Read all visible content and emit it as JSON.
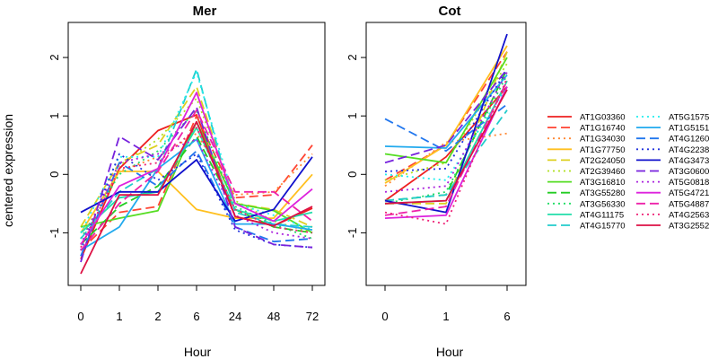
{
  "chart_data": [
    {
      "type": "line",
      "title": "Mer",
      "xlabel": "Hour",
      "ylabel": "centered expression",
      "categories": [
        "0",
        "1",
        "2",
        "6",
        "24",
        "48",
        "72"
      ],
      "ylim": [
        -1.9,
        2.6
      ],
      "yticks": [
        -1,
        0,
        1,
        2
      ],
      "series": [
        {
          "name": "AT1G03360",
          "color": "#EE2020",
          "dash": "solid",
          "values": [
            -1.45,
            0.1,
            0.75,
            1.02,
            -0.72,
            -0.88,
            -0.58
          ]
        },
        {
          "name": "AT1G16740",
          "color": "#FF4433",
          "dash": "longdash",
          "values": [
            -1.3,
            -0.65,
            -0.55,
            1.0,
            -0.4,
            -0.35,
            0.5
          ]
        },
        {
          "name": "AT1G34030",
          "color": "#FF8833",
          "dash": "dotted",
          "values": [
            -1.1,
            0.05,
            0.3,
            0.7,
            -0.35,
            -0.3,
            0.35
          ]
        },
        {
          "name": "AT1G77750",
          "color": "#FFC020",
          "dash": "solid",
          "values": [
            -1.0,
            0.05,
            0.05,
            -0.6,
            -0.75,
            -0.75,
            0.0
          ]
        },
        {
          "name": "AT2G24050",
          "color": "#DDD020",
          "dash": "longdash",
          "values": [
            -0.9,
            0.2,
            0.5,
            1.5,
            -0.5,
            -0.6,
            -0.9
          ]
        },
        {
          "name": "AT2G39460",
          "color": "#B0E020",
          "dash": "dotted",
          "values": [
            -1.2,
            0.15,
            0.6,
            1.3,
            -0.45,
            -0.8,
            -1.0
          ]
        },
        {
          "name": "AT3G16810",
          "color": "#55DD22",
          "dash": "solid",
          "values": [
            -0.9,
            -0.75,
            -0.62,
            0.9,
            -0.5,
            -0.62,
            -1.0
          ]
        },
        {
          "name": "AT3G55280",
          "color": "#22CC22",
          "dash": "longdash",
          "values": [
            -1.2,
            -0.55,
            -0.2,
            0.65,
            -0.6,
            -0.9,
            -1.0
          ]
        },
        {
          "name": "AT3G56330",
          "color": "#22DD66",
          "dash": "dotted",
          "values": [
            -1.1,
            0.0,
            0.4,
            1.1,
            -0.55,
            -0.85,
            -1.1
          ]
        },
        {
          "name": "AT4G11175",
          "color": "#22DDAA",
          "dash": "solid",
          "values": [
            -1.0,
            -0.4,
            -0.3,
            0.8,
            -0.6,
            -0.8,
            -0.65
          ]
        },
        {
          "name": "AT4G15770",
          "color": "#22CCCC",
          "dash": "longdash",
          "values": [
            -1.1,
            -0.3,
            0.1,
            1.8,
            -0.65,
            -0.85,
            -0.9
          ]
        },
        {
          "name": "AT5G1575",
          "color": "#22EEEE",
          "dash": "dotted",
          "values": [
            -1.0,
            0.3,
            0.3,
            1.75,
            -0.5,
            -0.7,
            -0.95
          ]
        },
        {
          "name": "AT1G5151",
          "color": "#22AAEE",
          "dash": "solid",
          "values": [
            -1.3,
            -0.9,
            0.1,
            0.6,
            -0.85,
            -0.85,
            -0.95
          ]
        },
        {
          "name": "AT4G1260",
          "color": "#2277EE",
          "dash": "longdash",
          "values": [
            -1.4,
            0.2,
            -0.2,
            0.4,
            -0.9,
            -1.15,
            -1.1
          ]
        },
        {
          "name": "AT4G2238",
          "color": "#2233DD",
          "dash": "dotted",
          "values": [
            -1.3,
            0.35,
            -0.1,
            0.35,
            -0.95,
            -1.2,
            -1.25
          ]
        },
        {
          "name": "AT4G3473",
          "color": "#1111CC",
          "dash": "solid",
          "values": [
            -0.65,
            -0.3,
            -0.3,
            0.25,
            -0.8,
            -0.6,
            0.3
          ]
        },
        {
          "name": "AT3G0600",
          "color": "#7722DD",
          "dash": "longdash",
          "values": [
            -1.5,
            0.65,
            0.25,
            1.15,
            -0.9,
            -1.2,
            -1.25
          ]
        },
        {
          "name": "AT5G0818",
          "color": "#AA22DD",
          "dash": "dotted",
          "values": [
            -1.2,
            0.2,
            0.35,
            0.6,
            -0.7,
            -1.0,
            -1.1
          ]
        },
        {
          "name": "AT5G4721",
          "color": "#DD22DD",
          "dash": "solid",
          "values": [
            -1.2,
            -0.2,
            0.1,
            1.4,
            -0.5,
            -0.8,
            -0.25
          ]
        },
        {
          "name": "AT5G4887",
          "color": "#EE22AA",
          "dash": "longdash",
          "values": [
            -1.3,
            -0.5,
            0.05,
            1.1,
            -0.3,
            -0.3,
            -0.8
          ]
        },
        {
          "name": "AT4G2563",
          "color": "#EE2277",
          "dash": "dotted",
          "values": [
            -1.25,
            0.1,
            0.2,
            0.8,
            -0.6,
            -0.9,
            -1.0
          ]
        },
        {
          "name": "AT3G2552",
          "color": "#DD1144",
          "dash": "solid",
          "values": [
            -1.7,
            -0.35,
            -0.35,
            0.9,
            -0.72,
            -0.88,
            -0.55
          ]
        }
      ]
    },
    {
      "type": "line",
      "title": "Cot",
      "xlabel": "Hour",
      "categories": [
        "0",
        "1",
        "6"
      ],
      "ylim": [
        -1.9,
        2.6
      ],
      "yticks": [
        -1,
        0,
        1,
        2
      ],
      "series": [
        {
          "name": "AT1G03360",
          "color": "#EE2020",
          "values": [
            -0.45,
            0.3,
            1.5
          ]
        },
        {
          "name": "AT1G16740",
          "color": "#FF4433",
          "values": [
            -0.1,
            0.5,
            2.1
          ]
        },
        {
          "name": "AT1G34030",
          "color": "#FF8833",
          "values": [
            -0.2,
            0.55,
            0.7
          ]
        },
        {
          "name": "AT1G77750",
          "color": "#FFC020",
          "values": [
            -0.15,
            0.5,
            2.2
          ]
        },
        {
          "name": "AT2G24050",
          "color": "#DDD020",
          "values": [
            -0.5,
            -0.5,
            2.1
          ]
        },
        {
          "name": "AT2G39460",
          "color": "#B0E020",
          "values": [
            -0.1,
            0.2,
            1.9
          ]
        },
        {
          "name": "AT3G16810",
          "color": "#55DD22",
          "values": [
            0.35,
            0.2,
            2.0
          ]
        },
        {
          "name": "AT3G55280",
          "color": "#22CC22",
          "values": [
            -0.45,
            -0.35,
            1.8
          ]
        },
        {
          "name": "AT3G56330",
          "color": "#22DD66",
          "values": [
            -0.5,
            -0.3,
            1.7
          ]
        },
        {
          "name": "AT4G11175",
          "color": "#22DDAA",
          "values": [
            -0.5,
            -0.45,
            1.6
          ]
        },
        {
          "name": "AT4G15770",
          "color": "#22CCCC",
          "values": [
            -0.45,
            -0.35,
            1.1
          ]
        },
        {
          "name": "AT5G1575",
          "color": "#22EEEE",
          "values": [
            0.0,
            -0.1,
            1.5
          ]
        },
        {
          "name": "AT1G5151",
          "color": "#22AAEE",
          "values": [
            0.48,
            0.45,
            1.7
          ]
        },
        {
          "name": "AT4G1260",
          "color": "#2277EE",
          "values": [
            0.95,
            0.4,
            1.2
          ]
        },
        {
          "name": "AT4G2238",
          "color": "#2233DD",
          "values": [
            0.05,
            0.1,
            1.8
          ]
        },
        {
          "name": "AT4G3473",
          "color": "#1111CC",
          "values": [
            -0.45,
            -0.65,
            2.4
          ]
        },
        {
          "name": "AT3G0600",
          "color": "#7722DD",
          "values": [
            0.2,
            0.5,
            1.8
          ]
        },
        {
          "name": "AT5G0818",
          "color": "#AA22DD",
          "values": [
            -0.3,
            -0.2,
            1.75
          ]
        },
        {
          "name": "AT5G4721",
          "color": "#DD22DD",
          "values": [
            -0.75,
            -0.7,
            1.5
          ]
        },
        {
          "name": "AT5G4887",
          "color": "#EE22AA",
          "values": [
            -0.7,
            -0.55,
            1.6
          ]
        },
        {
          "name": "AT4G2563",
          "color": "#EE2277",
          "values": [
            -0.65,
            -0.85,
            1.65
          ]
        },
        {
          "name": "AT3G2552",
          "color": "#DD1144",
          "values": [
            -0.5,
            -0.45,
            1.45
          ]
        }
      ]
    }
  ],
  "legend_columns": [
    [
      "AT1G03360",
      "AT1G16740",
      "AT1G34030",
      "AT1G77750",
      "AT2G24050",
      "AT2G39460",
      "AT3G16810",
      "AT3G55280",
      "AT3G56330",
      "AT4G11175",
      "AT4G15770"
    ],
    [
      "AT5G1575",
      "AT1G5151",
      "AT4G1260",
      "AT4G2238",
      "AT4G3473",
      "AT3G0600",
      "AT5G0818",
      "AT5G4721",
      "AT5G4887",
      "AT4G2563",
      "AT3G2552"
    ]
  ]
}
